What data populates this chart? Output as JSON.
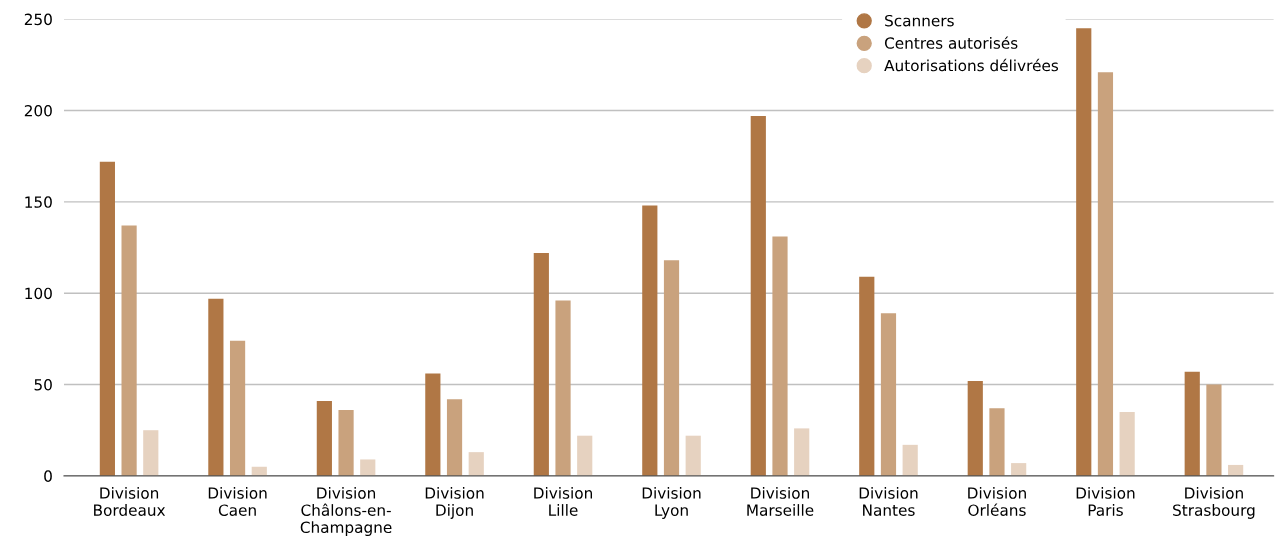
{
  "chart_data": {
    "type": "bar",
    "categories": [
      "Division\nBordeaux",
      "Division\nCaen",
      "Division\nChâlons-en-\nChampagne",
      "Division\nDijon",
      "Division\nLille",
      "Division\nLyon",
      "Division\nMarseille",
      "Division\nNantes",
      "Division\nOrléans",
      "Division\nParis",
      "Division\nStrasbourg"
    ],
    "series": [
      {
        "name": "Scanners",
        "color": "#b07745",
        "values": [
          172,
          97,
          41,
          56,
          122,
          148,
          197,
          109,
          52,
          245,
          57
        ]
      },
      {
        "name": "Centres autorisés",
        "color": "#c9a27d",
        "values": [
          137,
          74,
          36,
          42,
          96,
          118,
          131,
          89,
          37,
          221,
          50
        ]
      },
      {
        "name": "Autorisations délivrées",
        "color": "#e6d2c0",
        "values": [
          25,
          5,
          9,
          13,
          22,
          22,
          26,
          17,
          7,
          35,
          6
        ]
      }
    ],
    "ylim": [
      0,
      250
    ],
    "yticks": [
      0,
      50,
      100,
      150,
      200,
      250
    ],
    "grid": "y",
    "legend": "top right"
  }
}
